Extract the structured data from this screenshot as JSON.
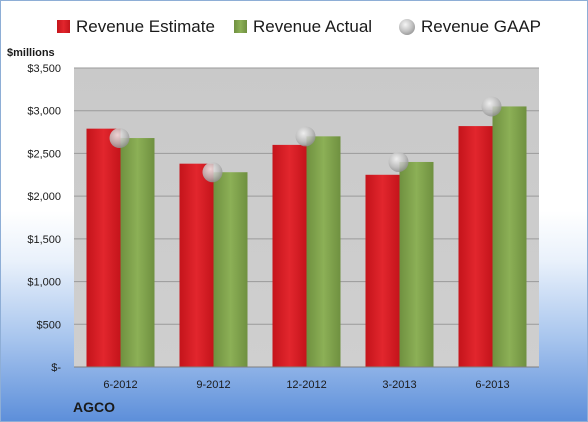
{
  "chart_data": {
    "type": "bar",
    "categories": [
      "6-2012",
      "9-2012",
      "12-2012",
      "3-2013",
      "6-2013"
    ],
    "series": [
      {
        "name": "Revenue Estimate",
        "kind": "bar",
        "color": "#d71920",
        "values": [
          2790,
          2380,
          2600,
          2250,
          2820
        ]
      },
      {
        "name": "Revenue Actual",
        "kind": "bar",
        "color": "#7ea04d",
        "values": [
          2680,
          2280,
          2700,
          2400,
          3050
        ]
      },
      {
        "name": "Revenue GAAP",
        "kind": "marker",
        "color": "#b8b8b8",
        "values": [
          2680,
          2280,
          2700,
          2400,
          3050
        ]
      }
    ],
    "ylabel": "$millions",
    "yticks": [
      "$-",
      "$500",
      "$1,000",
      "$1,500",
      "$2,000",
      "$2,500",
      "$3,000",
      "$3,500"
    ],
    "ytick_values": [
      0,
      500,
      1000,
      1500,
      2000,
      2500,
      3000,
      3500
    ],
    "ylim": [
      0,
      3500
    ],
    "grid": true,
    "legend_position": "top",
    "plot_background": "#c8c8c8"
  },
  "company_label": "AGCO"
}
